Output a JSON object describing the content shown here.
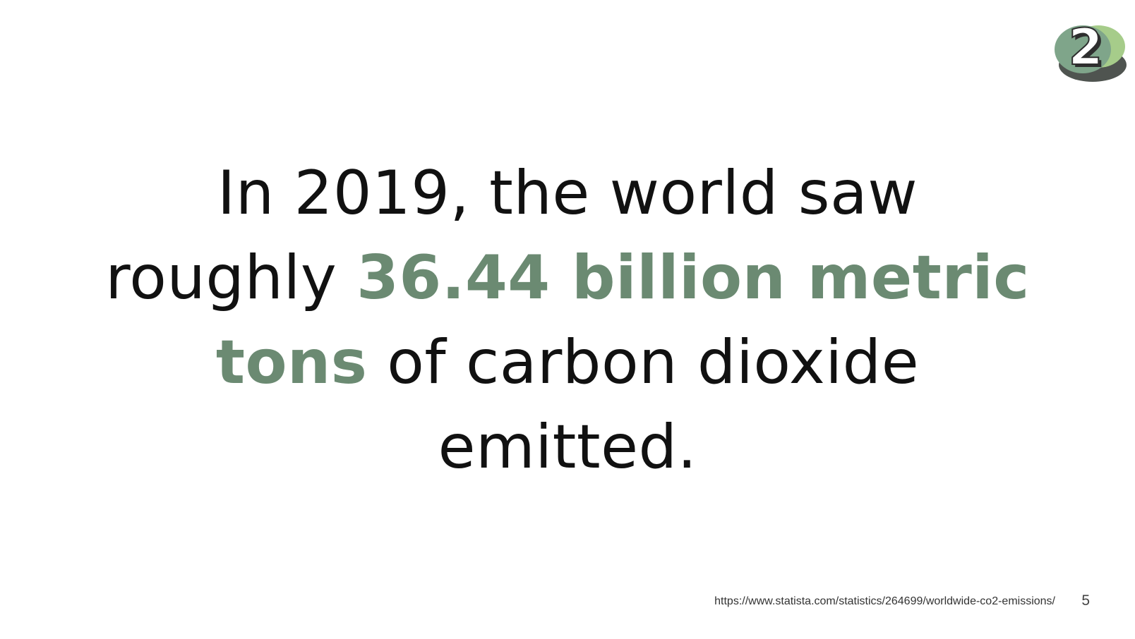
{
  "slide": {
    "badge": {
      "number": "2",
      "colors": {
        "green_dark": "#7fa58a",
        "green_light": "#a6cc8a",
        "shadow": "#4f5450"
      }
    },
    "statement": {
      "line1": "In 2019, the world saw",
      "line2_plain": "roughly ",
      "highlight_a": "36.44 billion metric",
      "highlight_b": "tons",
      "line3_plain": " of carbon dioxide",
      "line4": "emitted."
    },
    "source_url": "https://www.statista.com/statistics/264699/worldwide-co2-emissions/",
    "page_number": "5",
    "colors": {
      "highlight": "#6b8a72",
      "text": "#111111"
    }
  }
}
